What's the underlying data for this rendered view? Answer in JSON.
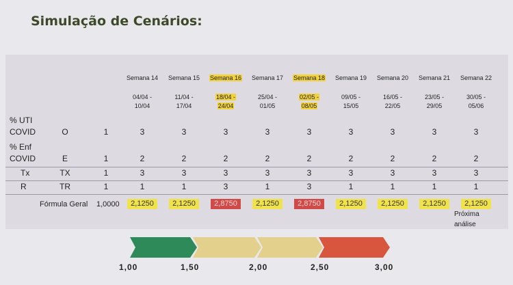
{
  "title": "Simulação de Cenários:",
  "weeks": [
    {
      "label": "Semana 14",
      "range_a": "04/04 -",
      "range_b": "10/04",
      "highlight": false
    },
    {
      "label": "Semana 15",
      "range_a": "11/04 -",
      "range_b": "17/04",
      "highlight": false
    },
    {
      "label": "Semana 16",
      "range_a": "18/04 -",
      "range_b": "24/04",
      "highlight": true
    },
    {
      "label": "Semana 17",
      "range_a": "25/04 -",
      "range_b": "01/05",
      "highlight": false
    },
    {
      "label": "Semana 18",
      "range_a": "02/05 -",
      "range_b": "08/05",
      "highlight": true
    },
    {
      "label": "Semana 19",
      "range_a": "09/05 -",
      "range_b": "15/05",
      "highlight": false
    },
    {
      "label": "Semana 20",
      "range_a": "16/05 -",
      "range_b": "22/05",
      "highlight": false
    },
    {
      "label": "Semana 21",
      "range_a": "23/05 -",
      "range_b": "29/05",
      "highlight": false
    },
    {
      "label": "Semana 22",
      "range_a": "30/05 -",
      "range_b": "05/06",
      "highlight": false
    }
  ],
  "rows": [
    {
      "label1": "% UTI",
      "label2": "COVID",
      "code": "O",
      "weight": "1",
      "values": [
        "3",
        "3",
        "3",
        "3",
        "3",
        "3",
        "3",
        "3",
        "3"
      ]
    },
    {
      "label1": "% Enf",
      "label2": "COVID",
      "code": "E",
      "weight": "1",
      "values": [
        "2",
        "2",
        "2",
        "2",
        "2",
        "2",
        "2",
        "2",
        "2"
      ]
    },
    {
      "label1": "",
      "label2": "Tx",
      "code": "TX",
      "weight": "1",
      "values": [
        "3",
        "3",
        "3",
        "3",
        "3",
        "3",
        "3",
        "3",
        "3"
      ]
    },
    {
      "label1": "",
      "label2": "R",
      "code": "TR",
      "weight": "1",
      "values": [
        "1",
        "1",
        "3",
        "1",
        "3",
        "1",
        "1",
        "1",
        "1"
      ]
    }
  ],
  "formula": {
    "label": "Fórmula Geral",
    "base": "1,0000",
    "values": [
      {
        "v": "2,1250",
        "color": "yellow"
      },
      {
        "v": "2,1250",
        "color": "yellow"
      },
      {
        "v": "2,8750",
        "color": "red"
      },
      {
        "v": "2,1250",
        "color": "yellow"
      },
      {
        "v": "2,8750",
        "color": "red"
      },
      {
        "v": "2,1250",
        "color": "yellow"
      },
      {
        "v": "2,1250",
        "color": "yellow"
      },
      {
        "v": "2,1250",
        "color": "yellow"
      },
      {
        "v": "2,1250",
        "color": "yellow"
      }
    ]
  },
  "note_line1": "Próxima",
  "note_line2": "análise",
  "scale": {
    "ticks": [
      "1,00",
      "1,50",
      "2,00",
      "2,50",
      "3,00"
    ],
    "colors": [
      "#2f8a5a",
      "#e3d08c",
      "#e3d08c",
      "#d8553e"
    ]
  }
}
